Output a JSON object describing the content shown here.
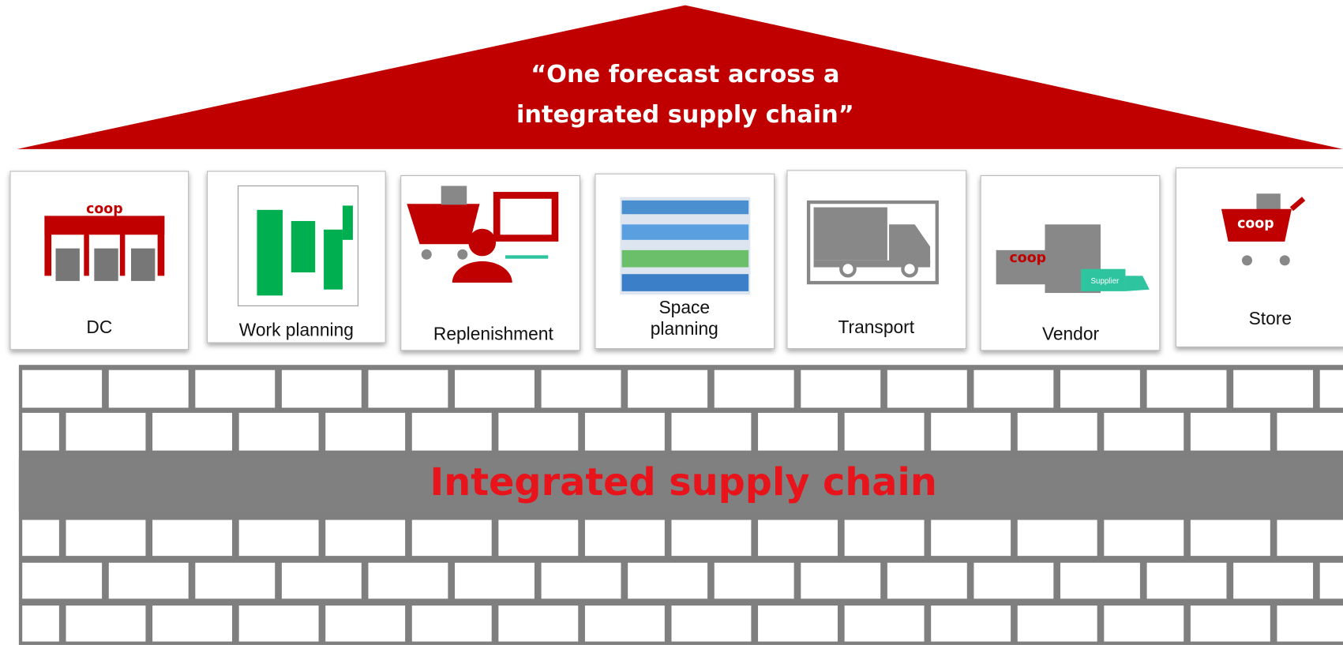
{
  "roof": {
    "lines": [
      "“One forecast across a",
      "integrated supply chain”"
    ]
  },
  "pillars": [
    {
      "label": "DC",
      "logo": "coop"
    },
    {
      "label": "Work planning"
    },
    {
      "label": "Replenishment"
    },
    {
      "label": [
        "Space",
        "planning"
      ]
    },
    {
      "label": "Transport"
    },
    {
      "label": "Vendor",
      "logo": "coop",
      "badge": "Supplier"
    },
    {
      "label": "Store",
      "logo": "coop"
    }
  ],
  "foundation": {
    "title": "Integrated supply chain"
  }
}
